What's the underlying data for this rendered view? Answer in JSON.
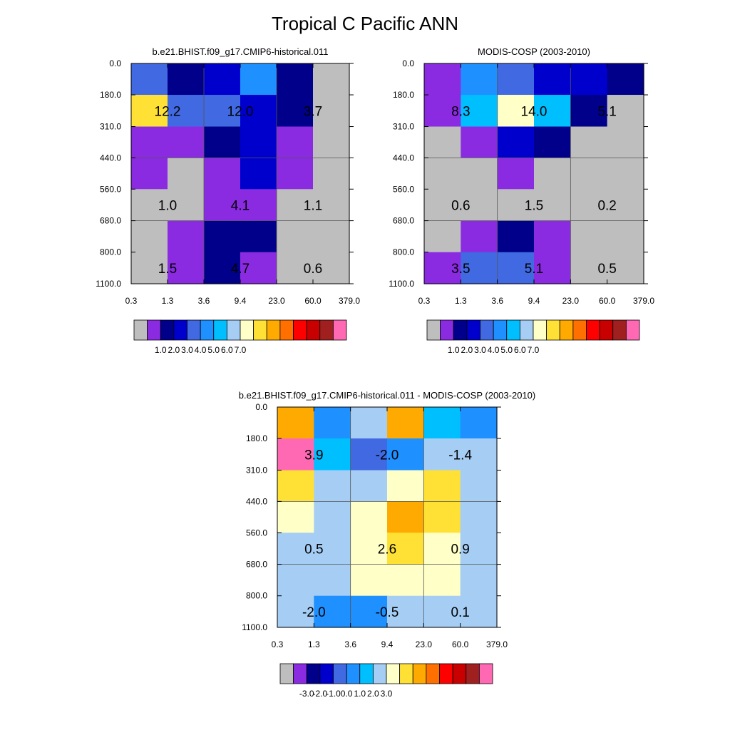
{
  "page_title": "Tropical C Pacific ANN",
  "chart_data": [
    {
      "type": "heatmap",
      "title": "b.e21.BHIST.f09_g17.CMIP6-historical.011",
      "xlabel": "",
      "ylabel": "",
      "x_ticks": [
        "0.3",
        "1.3",
        "3.6",
        "9.4",
        "23.0",
        "60.0",
        "379.0"
      ],
      "y_ticks": [
        "0.0",
        "180.0",
        "310.0",
        "440.0",
        "560.0",
        "680.0",
        "800.0",
        "1100.0"
      ],
      "grid": true,
      "cells": [
        [
          "#4169e1",
          "#00008b",
          "#0000cd",
          "#1e90ff",
          "#00008b",
          "#bebebe"
        ],
        [
          "#ffe135",
          "#4169e1",
          "#4169e1",
          "#0000cd",
          "#00008b",
          "#bebebe"
        ],
        [
          "#8a2be2",
          "#8a2be2",
          "#00008b",
          "#0000cd",
          "#8a2be2",
          "#bebebe"
        ],
        [
          "#8a2be2",
          "#bebebe",
          "#8a2be2",
          "#0000cd",
          "#8a2be2",
          "#bebebe"
        ],
        [
          "#bebebe",
          "#bebebe",
          "#8a2be2",
          "#8a2be2",
          "#bebebe",
          "#bebebe"
        ],
        [
          "#bebebe",
          "#8a2be2",
          "#00008b",
          "#00008b",
          "#bebebe",
          "#bebebe"
        ],
        [
          "#bebebe",
          "#8a2be2",
          "#00008b",
          "#8a2be2",
          "#bebebe",
          "#bebebe"
        ]
      ],
      "annotations": [
        {
          "text": "12.2",
          "col": 1,
          "row": 1
        },
        {
          "text": "12.0",
          "col": 3,
          "row": 1
        },
        {
          "text": "3.7",
          "col": 5,
          "row": 1
        },
        {
          "text": "1.0",
          "col": 1,
          "row": 4
        },
        {
          "text": "4.1",
          "col": 3,
          "row": 4
        },
        {
          "text": "1.1",
          "col": 5,
          "row": 4
        },
        {
          "text": "1.5",
          "col": 1,
          "row": 6
        },
        {
          "text": "4.7",
          "col": 3,
          "row": 6
        },
        {
          "text": "0.6",
          "col": 5,
          "row": 6
        }
      ],
      "colorbar": {
        "colors": [
          "#bebebe",
          "#8a2be2",
          "#00008b",
          "#0000cd",
          "#4169e1",
          "#1e90ff",
          "#00bfff",
          "#a6cef5",
          "#ffffc8",
          "#ffe135",
          "#ffaa00",
          "#ff7000",
          "#ff0000",
          "#c80000",
          "#a02020",
          "#ff69b4"
        ],
        "labels": [
          "1.0",
          "2.0",
          "3.0",
          "4.0",
          "5.0",
          "6.0",
          "7.0"
        ]
      }
    },
    {
      "type": "heatmap",
      "title": "MODIS-COSP (2003-2010)",
      "xlabel": "",
      "ylabel": "",
      "x_ticks": [
        "0.3",
        "1.3",
        "3.6",
        "9.4",
        "23.0",
        "60.0",
        "379.0"
      ],
      "y_ticks": [
        "0.0",
        "180.0",
        "310.0",
        "440.0",
        "560.0",
        "680.0",
        "800.0",
        "1100.0"
      ],
      "grid": true,
      "cells": [
        [
          "#8a2be2",
          "#1e90ff",
          "#4169e1",
          "#0000cd",
          "#0000cd",
          "#00008b"
        ],
        [
          "#8a2be2",
          "#00bfff",
          "#ffffc8",
          "#00bfff",
          "#00008b",
          "#bebebe"
        ],
        [
          "#bebebe",
          "#8a2be2",
          "#0000cd",
          "#00008b",
          "#bebebe",
          "#bebebe"
        ],
        [
          "#bebebe",
          "#bebebe",
          "#8a2be2",
          "#bebebe",
          "#bebebe",
          "#bebebe"
        ],
        [
          "#bebebe",
          "#bebebe",
          "#bebebe",
          "#bebebe",
          "#bebebe",
          "#bebebe"
        ],
        [
          "#bebebe",
          "#8a2be2",
          "#00008b",
          "#8a2be2",
          "#bebebe",
          "#bebebe"
        ],
        [
          "#8a2be2",
          "#4169e1",
          "#4169e1",
          "#8a2be2",
          "#bebebe",
          "#bebebe"
        ]
      ],
      "annotations": [
        {
          "text": "8.3",
          "col": 1,
          "row": 1
        },
        {
          "text": "14.0",
          "col": 3,
          "row": 1
        },
        {
          "text": "5.1",
          "col": 5,
          "row": 1
        },
        {
          "text": "0.6",
          "col": 1,
          "row": 4
        },
        {
          "text": "1.5",
          "col": 3,
          "row": 4
        },
        {
          "text": "0.2",
          "col": 5,
          "row": 4
        },
        {
          "text": "3.5",
          "col": 1,
          "row": 6
        },
        {
          "text": "5.1",
          "col": 3,
          "row": 6
        },
        {
          "text": "0.5",
          "col": 5,
          "row": 6
        }
      ],
      "colorbar": {
        "colors": [
          "#bebebe",
          "#8a2be2",
          "#00008b",
          "#0000cd",
          "#4169e1",
          "#1e90ff",
          "#00bfff",
          "#a6cef5",
          "#ffffc8",
          "#ffe135",
          "#ffaa00",
          "#ff7000",
          "#ff0000",
          "#c80000",
          "#a02020",
          "#ff69b4"
        ],
        "labels": [
          "1.0",
          "2.0",
          "3.0",
          "4.0",
          "5.0",
          "6.0",
          "7.0"
        ]
      }
    },
    {
      "type": "heatmap",
      "title": "b.e21.BHIST.f09_g17.CMIP6-historical.011 - MODIS-COSP (2003-2010)",
      "xlabel": "",
      "ylabel": "",
      "x_ticks": [
        "0.3",
        "1.3",
        "3.6",
        "9.4",
        "23.0",
        "60.0",
        "379.0"
      ],
      "y_ticks": [
        "0.0",
        "180.0",
        "310.0",
        "440.0",
        "560.0",
        "680.0",
        "800.0",
        "1100.0"
      ],
      "grid": true,
      "cells": [
        [
          "#ffaa00",
          "#1e90ff",
          "#a6cef5",
          "#ffaa00",
          "#00bfff",
          "#1e90ff"
        ],
        [
          "#ff69b4",
          "#00bfff",
          "#4169e1",
          "#1e90ff",
          "#a6cef5",
          "#a6cef5"
        ],
        [
          "#ffe135",
          "#a6cef5",
          "#a6cef5",
          "#ffffc8",
          "#ffe135",
          "#a6cef5"
        ],
        [
          "#ffffc8",
          "#a6cef5",
          "#ffffc8",
          "#ffaa00",
          "#ffe135",
          "#a6cef5"
        ],
        [
          "#a6cef5",
          "#a6cef5",
          "#ffffc8",
          "#ffe135",
          "#ffffc8",
          "#a6cef5"
        ],
        [
          "#a6cef5",
          "#a6cef5",
          "#ffffc8",
          "#ffffc8",
          "#ffffc8",
          "#a6cef5"
        ],
        [
          "#a6cef5",
          "#1e90ff",
          "#1e90ff",
          "#a6cef5",
          "#a6cef5",
          "#a6cef5"
        ]
      ],
      "annotations": [
        {
          "text": "3.9",
          "col": 1,
          "row": 1
        },
        {
          "text": "-2.0",
          "col": 3,
          "row": 1
        },
        {
          "text": "-1.4",
          "col": 5,
          "row": 1
        },
        {
          "text": "0.5",
          "col": 1,
          "row": 4
        },
        {
          "text": "2.6",
          "col": 3,
          "row": 4
        },
        {
          "text": "0.9",
          "col": 5,
          "row": 4
        },
        {
          "text": "-2.0",
          "col": 1,
          "row": 6
        },
        {
          "text": "-0.5",
          "col": 3,
          "row": 6
        },
        {
          "text": "0.1",
          "col": 5,
          "row": 6
        }
      ],
      "colorbar": {
        "colors": [
          "#bebebe",
          "#8a2be2",
          "#00008b",
          "#0000cd",
          "#4169e1",
          "#1e90ff",
          "#00bfff",
          "#a6cef5",
          "#ffffc8",
          "#ffe135",
          "#ffaa00",
          "#ff7000",
          "#ff0000",
          "#c80000",
          "#a02020",
          "#ff69b4"
        ],
        "labels": [
          "-3.0",
          "-2.0",
          "-1.0",
          "0.0",
          "1.0",
          "2.0",
          "3.0"
        ]
      }
    }
  ]
}
